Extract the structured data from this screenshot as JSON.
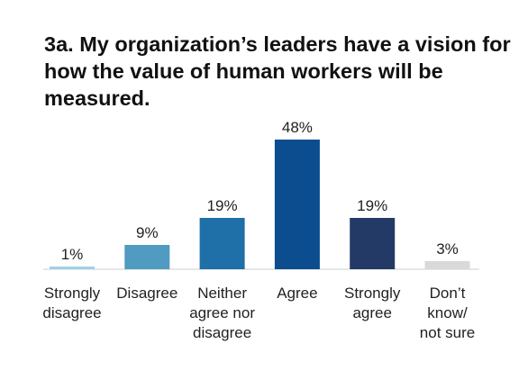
{
  "chart_data": {
    "type": "bar",
    "title": "3a. My organization’s leaders have a vision for how the value of human workers will be measured.",
    "categories": [
      [
        "Strongly",
        "disagree"
      ],
      [
        "Disagree"
      ],
      [
        "Neither",
        "agree nor",
        "disagree"
      ],
      [
        "Agree"
      ],
      [
        "Strongly",
        "agree"
      ],
      [
        "Don’t",
        "know/",
        "not sure"
      ]
    ],
    "values": [
      1,
      9,
      19,
      48,
      19,
      3
    ],
    "value_labels": [
      "1%",
      "9%",
      "19%",
      "48%",
      "19%",
      "3%"
    ],
    "colors": [
      "#9fd1e9",
      "#4f9bc1",
      "#1f6fa8",
      "#0b4d8f",
      "#243a66",
      "#d9d9d9"
    ],
    "unit": "%",
    "xlabel": "",
    "ylabel": "",
    "grid": false,
    "legend": "none"
  }
}
